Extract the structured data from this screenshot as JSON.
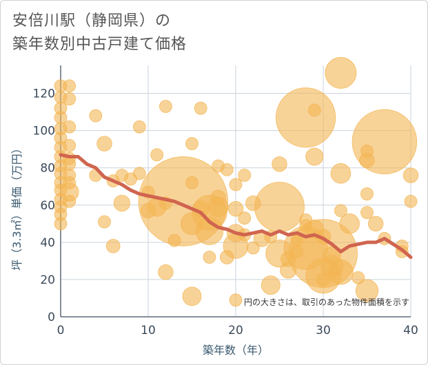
{
  "title": {
    "line1": "安倍川駅（静岡県）の",
    "line2": "築年数別中古戸建て価格"
  },
  "chart_data": {
    "type": "scatter",
    "title": "安倍川駅（静岡県）の 築年数別中古戸建て価格",
    "xlabel": "築年数（年）",
    "ylabel": "坪（3.3㎡）単価（万円）",
    "xlim": [
      0,
      40
    ],
    "ylim": [
      0,
      135
    ],
    "xticks": [
      0,
      10,
      20,
      30,
      40
    ],
    "yticks": [
      0,
      20,
      40,
      60,
      80,
      100,
      120
    ],
    "grid": true,
    "note": "円の大きさは、取引のあった物件面積を示す",
    "colors": {
      "bubble": "#f3b654",
      "line": "#d0654f",
      "grid": "#c9d3dc",
      "plot_bg": "#ffffff"
    },
    "points": [
      {
        "x": 0,
        "y": 124,
        "s": 1
      },
      {
        "x": 0,
        "y": 118,
        "s": 1
      },
      {
        "x": 0,
        "y": 112,
        "s": 1
      },
      {
        "x": 0,
        "y": 107,
        "s": 1
      },
      {
        "x": 0,
        "y": 101,
        "s": 1
      },
      {
        "x": 0,
        "y": 96,
        "s": 1
      },
      {
        "x": 0,
        "y": 91,
        "s": 1
      },
      {
        "x": 0,
        "y": 86,
        "s": 1
      },
      {
        "x": 0,
        "y": 81,
        "s": 1
      },
      {
        "x": 0,
        "y": 77,
        "s": 1
      },
      {
        "x": 0,
        "y": 72,
        "s": 1
      },
      {
        "x": 0,
        "y": 68,
        "s": 1
      },
      {
        "x": 0,
        "y": 63,
        "s": 1
      },
      {
        "x": 0,
        "y": 59,
        "s": 1
      },
      {
        "x": 0,
        "y": 55,
        "s": 1
      },
      {
        "x": 0,
        "y": 50,
        "s": 1
      },
      {
        "x": 1,
        "y": 124,
        "s": 1
      },
      {
        "x": 1,
        "y": 117,
        "s": 1
      },
      {
        "x": 1,
        "y": 102,
        "s": 1
      },
      {
        "x": 1,
        "y": 92,
        "s": 1
      },
      {
        "x": 1,
        "y": 85,
        "s": 1
      },
      {
        "x": 1,
        "y": 82,
        "s": 1
      },
      {
        "x": 1,
        "y": 76,
        "s": 1
      },
      {
        "x": 1,
        "y": 72,
        "s": 1
      },
      {
        "x": 1,
        "y": 67,
        "s": 1.5
      },
      {
        "x": 1,
        "y": 62,
        "s": 1
      },
      {
        "x": 4,
        "y": 108,
        "s": 1
      },
      {
        "x": 4,
        "y": 76,
        "s": 1
      },
      {
        "x": 5,
        "y": 93,
        "s": 1.2
      },
      {
        "x": 5,
        "y": 51,
        "s": 1
      },
      {
        "x": 6,
        "y": 73,
        "s": 1
      },
      {
        "x": 6,
        "y": 38,
        "s": 1.1
      },
      {
        "x": 7,
        "y": 76,
        "s": 1
      },
      {
        "x": 7,
        "y": 61,
        "s": 1.3
      },
      {
        "x": 8,
        "y": 74,
        "s": 1
      },
      {
        "x": 9,
        "y": 102,
        "s": 1
      },
      {
        "x": 9,
        "y": 77,
        "s": 1
      },
      {
        "x": 10,
        "y": 67,
        "s": 1
      },
      {
        "x": 10,
        "y": 57,
        "s": 1.2
      },
      {
        "x": 11,
        "y": 87,
        "s": 1
      },
      {
        "x": 11,
        "y": 59,
        "s": 1.5
      },
      {
        "x": 12,
        "y": 113,
        "s": 1
      },
      {
        "x": 12,
        "y": 61,
        "s": 1
      },
      {
        "x": 12,
        "y": 24,
        "s": 1.2
      },
      {
        "x": 13,
        "y": 41,
        "s": 1
      },
      {
        "x": 14,
        "y": 62,
        "s": 7.2
      },
      {
        "x": 15,
        "y": 93,
        "s": 1
      },
      {
        "x": 15,
        "y": 72,
        "s": 1
      },
      {
        "x": 15,
        "y": 50,
        "s": 1.8
      },
      {
        "x": 15,
        "y": 11,
        "s": 1.5
      },
      {
        "x": 16,
        "y": 112,
        "s": 1
      },
      {
        "x": 16,
        "y": 58,
        "s": 1.3
      },
      {
        "x": 17,
        "y": 56,
        "s": 2.8
      },
      {
        "x": 17,
        "y": 46,
        "s": 2.2
      },
      {
        "x": 17,
        "y": 32,
        "s": 1
      },
      {
        "x": 18,
        "y": 81,
        "s": 1
      },
      {
        "x": 18,
        "y": 64,
        "s": 1.2
      },
      {
        "x": 18,
        "y": 59,
        "s": 1.6
      },
      {
        "x": 19,
        "y": 79,
        "s": 1
      },
      {
        "x": 19,
        "y": 32,
        "s": 1.1
      },
      {
        "x": 20,
        "y": 71,
        "s": 1
      },
      {
        "x": 20,
        "y": 58,
        "s": 1.2
      },
      {
        "x": 20,
        "y": 45,
        "s": 1.4
      },
      {
        "x": 20,
        "y": 38,
        "s": 2
      },
      {
        "x": 20,
        "y": 9,
        "s": 1
      },
      {
        "x": 21,
        "y": 76,
        "s": 1
      },
      {
        "x": 21,
        "y": 53,
        "s": 1
      },
      {
        "x": 21,
        "y": 44,
        "s": 1
      },
      {
        "x": 22,
        "y": 61,
        "s": 1.2
      },
      {
        "x": 22,
        "y": 37,
        "s": 1
      },
      {
        "x": 23,
        "y": 42,
        "s": 1.3
      },
      {
        "x": 24,
        "y": 43,
        "s": 1
      },
      {
        "x": 24,
        "y": 17,
        "s": 1.5
      },
      {
        "x": 25,
        "y": 82,
        "s": 1.2
      },
      {
        "x": 25,
        "y": 59,
        "s": 4
      },
      {
        "x": 25,
        "y": 34,
        "s": 2.2
      },
      {
        "x": 26,
        "y": 31,
        "s": 1.2
      },
      {
        "x": 26,
        "y": 25,
        "s": 1.3
      },
      {
        "x": 27,
        "y": 41,
        "s": 1
      },
      {
        "x": 27,
        "y": 35,
        "s": 1
      },
      {
        "x": 28,
        "y": 107,
        "s": 4.8
      },
      {
        "x": 28,
        "y": 52,
        "s": 1
      },
      {
        "x": 28,
        "y": 49,
        "s": 1
      },
      {
        "x": 28,
        "y": 37,
        "s": 3.5
      },
      {
        "x": 29,
        "y": 111,
        "s": 1
      },
      {
        "x": 29,
        "y": 86,
        "s": 1.4
      },
      {
        "x": 29,
        "y": 47,
        "s": 1.5
      },
      {
        "x": 30,
        "y": 43,
        "s": 1.2
      },
      {
        "x": 30,
        "y": 34,
        "s": 5.5
      },
      {
        "x": 30,
        "y": 22,
        "s": 2.8
      },
      {
        "x": 30,
        "y": 20,
        "s": 1.1
      },
      {
        "x": 31,
        "y": 33,
        "s": 1.4
      },
      {
        "x": 31,
        "y": 27,
        "s": 1.8
      },
      {
        "x": 32,
        "y": 131,
        "s": 2.5
      },
      {
        "x": 32,
        "y": 77,
        "s": 1.6
      },
      {
        "x": 32,
        "y": 57,
        "s": 1
      },
      {
        "x": 32,
        "y": 24,
        "s": 2
      },
      {
        "x": 33,
        "y": 50,
        "s": 1.6
      },
      {
        "x": 34,
        "y": 21,
        "s": 1
      },
      {
        "x": 35,
        "y": 89,
        "s": 1
      },
      {
        "x": 35,
        "y": 84,
        "s": 1.2
      },
      {
        "x": 35,
        "y": 66,
        "s": 1
      },
      {
        "x": 35,
        "y": 56,
        "s": 1
      },
      {
        "x": 35,
        "y": 14,
        "s": 1.8
      },
      {
        "x": 36,
        "y": 50,
        "s": 1.2
      },
      {
        "x": 37,
        "y": 94,
        "s": 5.2
      },
      {
        "x": 37,
        "y": 42,
        "s": 1
      },
      {
        "x": 39,
        "y": 38,
        "s": 1
      },
      {
        "x": 39,
        "y": 35,
        "s": 1
      },
      {
        "x": 40,
        "y": 76,
        "s": 1.2
      },
      {
        "x": 40,
        "y": 62,
        "s": 1
      }
    ],
    "trend": {
      "x": [
        0,
        1,
        2,
        3,
        4,
        5,
        6,
        7,
        8,
        9,
        10,
        11,
        12,
        13,
        14,
        15,
        16,
        17,
        18,
        19,
        20,
        21,
        22,
        23,
        24,
        25,
        26,
        27,
        28,
        29,
        30,
        31,
        32,
        33,
        34,
        35,
        36,
        37,
        38,
        39,
        40
      ],
      "y": [
        87,
        86,
        86,
        82,
        80,
        75,
        73,
        71,
        68,
        66,
        65,
        64,
        63,
        62,
        60,
        58,
        56,
        51,
        48,
        47,
        45,
        44,
        45,
        46,
        44,
        46,
        44,
        45,
        43,
        44,
        42,
        39,
        35,
        38,
        39,
        40,
        40,
        42,
        39,
        36,
        32
      ]
    }
  }
}
